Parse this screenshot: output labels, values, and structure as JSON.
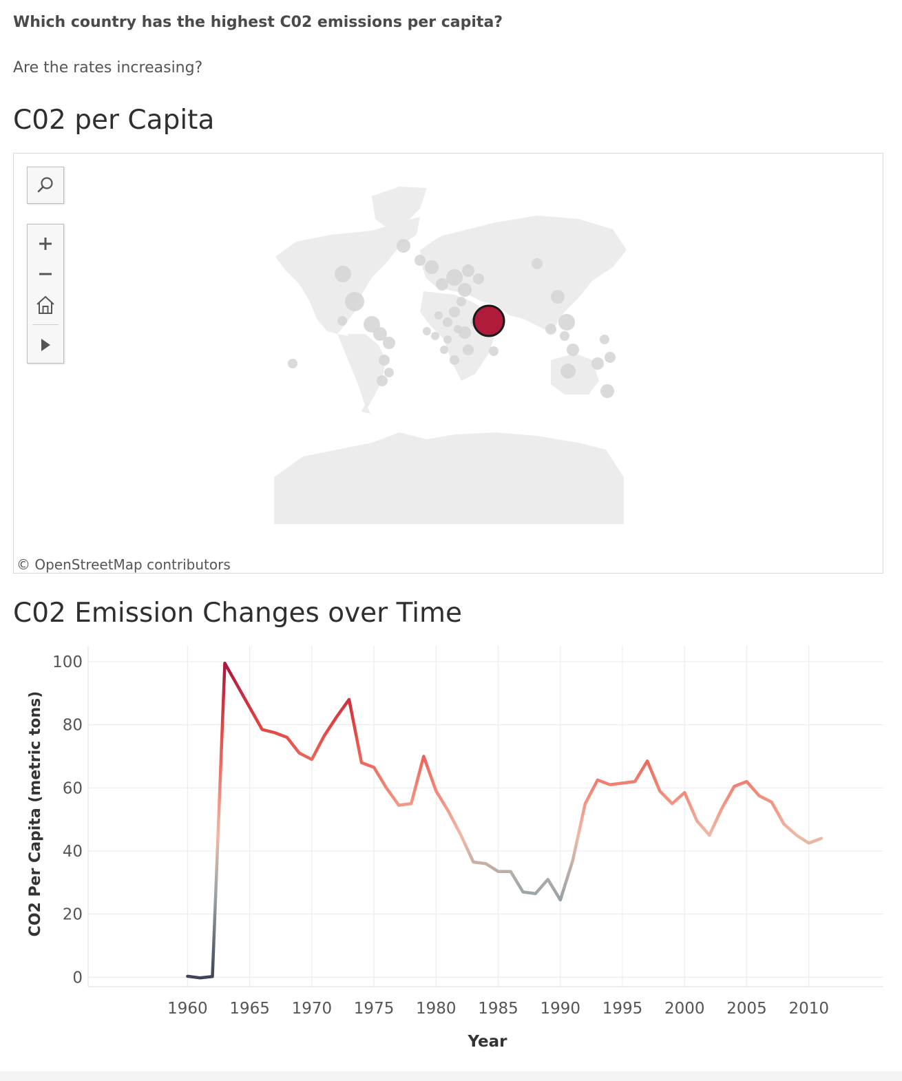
{
  "questions": {
    "q1": "Which country has the highest C02 emissions per capita?",
    "q2": "Are the rates increasing?"
  },
  "map_section": {
    "title": "C02 per Capita",
    "attribution": "© OpenStreetMap contributors",
    "controls": [
      "search-icon",
      "zoom-in-icon",
      "zoom-out-icon",
      "home-icon",
      "play-icon"
    ],
    "highlight_color": "#b01b3c",
    "land_color": "#ececec",
    "bubble_color": "#d6d6d6"
  },
  "chart_section": {
    "title": "C02 Emission Changes over Time"
  },
  "chart_data": {
    "type": "line",
    "xlabel": "Year",
    "ylabel": "CO2 Per Capita (metric tons)",
    "xlim": [
      1952,
      2016
    ],
    "ylim": [
      -3,
      105
    ],
    "x_ticks": [
      1960,
      1965,
      1970,
      1975,
      1980,
      1985,
      1990,
      1995,
      2000,
      2005,
      2010
    ],
    "y_ticks": [
      0,
      20,
      40,
      60,
      80,
      100
    ],
    "grid": true,
    "color_scale": [
      "#3c4556",
      "#98a5a8",
      "#f1b8a5",
      "#f28474",
      "#e2433f",
      "#a8163c"
    ],
    "series": [
      {
        "x": [
          1960,
          1961,
          1962,
          1963,
          1964,
          1965,
          1966,
          1967,
          1968,
          1969,
          1970,
          1971,
          1972,
          1973,
          1974,
          1975,
          1976,
          1977,
          1978,
          1979,
          1980,
          1981,
          1982,
          1983,
          1984,
          1985,
          1986,
          1987,
          1988,
          1989,
          1990,
          1991,
          1992,
          1993,
          1994,
          1995,
          1996,
          1997,
          1998,
          1999,
          2000,
          2001,
          2002,
          2003,
          2004,
          2005,
          2006,
          2007,
          2008,
          2009,
          2010,
          2011
        ],
        "values": [
          0.3,
          -0.2,
          0.2,
          99.5,
          92.5,
          85.5,
          78.5,
          77.5,
          76.0,
          71.0,
          69.0,
          76.5,
          82.5,
          88.0,
          68.0,
          66.5,
          60.0,
          54.5,
          55.0,
          70.0,
          59.0,
          52.5,
          45.0,
          36.5,
          36.0,
          33.5,
          33.5,
          27.0,
          26.5,
          31.0,
          24.5,
          37.0,
          55.0,
          62.5,
          61.0,
          61.5,
          62.0,
          68.5,
          59.0,
          55.0,
          58.5,
          49.5,
          45.0,
          53.5,
          60.5,
          62.0,
          57.5,
          55.5,
          48.5,
          45.0,
          42.5,
          44.0
        ]
      }
    ]
  }
}
